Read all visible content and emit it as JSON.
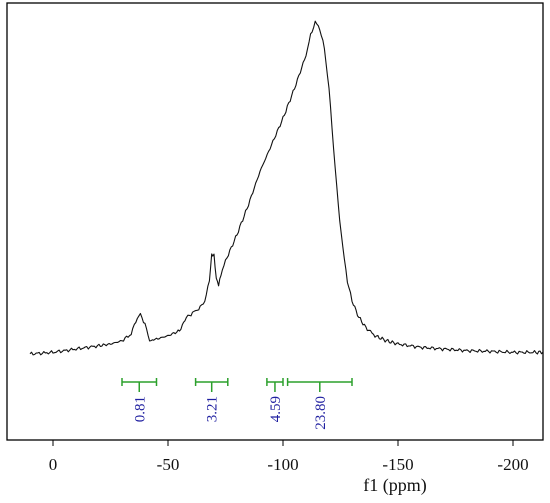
{
  "chart_data": {
    "type": "line",
    "xlabel": "f1 (ppm)",
    "xlim": [
      10,
      -213
    ],
    "x_reversed": true,
    "x_ticks": [
      0,
      -50,
      -100,
      -150,
      -200
    ],
    "x_tick_labels": [
      "0",
      "-50",
      "-100",
      "-150",
      "-200"
    ],
    "ylim": [
      0,
      1
    ],
    "grid": false,
    "legend": "none",
    "series": [
      {
        "x": [
          10,
          0,
          -10,
          -20,
          -25,
          -30,
          -34,
          -36,
          -38,
          -40,
          -42,
          -45,
          -50,
          -55,
          -58,
          -60,
          -62,
          -64,
          -66,
          -68,
          -69,
          -70,
          -71,
          -72,
          -73,
          -75,
          -80,
          -85,
          -90,
          -95,
          -100,
          -105,
          -110,
          -112,
          -114,
          -116,
          -118,
          -120,
          -122,
          -124,
          -126,
          -128,
          -130,
          -133,
          -136,
          -140,
          -145,
          -150,
          -160,
          -170,
          -180,
          -190,
          -200,
          -210,
          -213
        ],
        "y": [
          0.0,
          0.005,
          0.015,
          0.025,
          0.03,
          0.04,
          0.06,
          0.1,
          0.12,
          0.09,
          0.04,
          0.045,
          0.055,
          0.07,
          0.11,
          0.12,
          0.13,
          0.14,
          0.16,
          0.22,
          0.3,
          0.3,
          0.23,
          0.21,
          0.24,
          0.28,
          0.36,
          0.45,
          0.55,
          0.63,
          0.71,
          0.8,
          0.9,
          0.96,
          1.0,
          0.98,
          0.92,
          0.8,
          0.62,
          0.45,
          0.32,
          0.22,
          0.16,
          0.11,
          0.08,
          0.055,
          0.04,
          0.03,
          0.02,
          0.015,
          0.01,
          0.008,
          0.005,
          0.005,
          0.005
        ],
        "color": "#111111"
      }
    ],
    "integrals": [
      {
        "from": -30,
        "to": -45,
        "value": 0.81
      },
      {
        "from": -62,
        "to": -76,
        "value": 3.21
      },
      {
        "from": -93,
        "to": -100,
        "value": 4.59
      },
      {
        "from": -102,
        "to": -130,
        "value": 23.8
      }
    ],
    "integral_labels": [
      "0.81",
      "3.21",
      "4.59",
      "23.80"
    ],
    "integral_color": "#2ca02c",
    "integral_label_color": "#1f1fa0"
  }
}
